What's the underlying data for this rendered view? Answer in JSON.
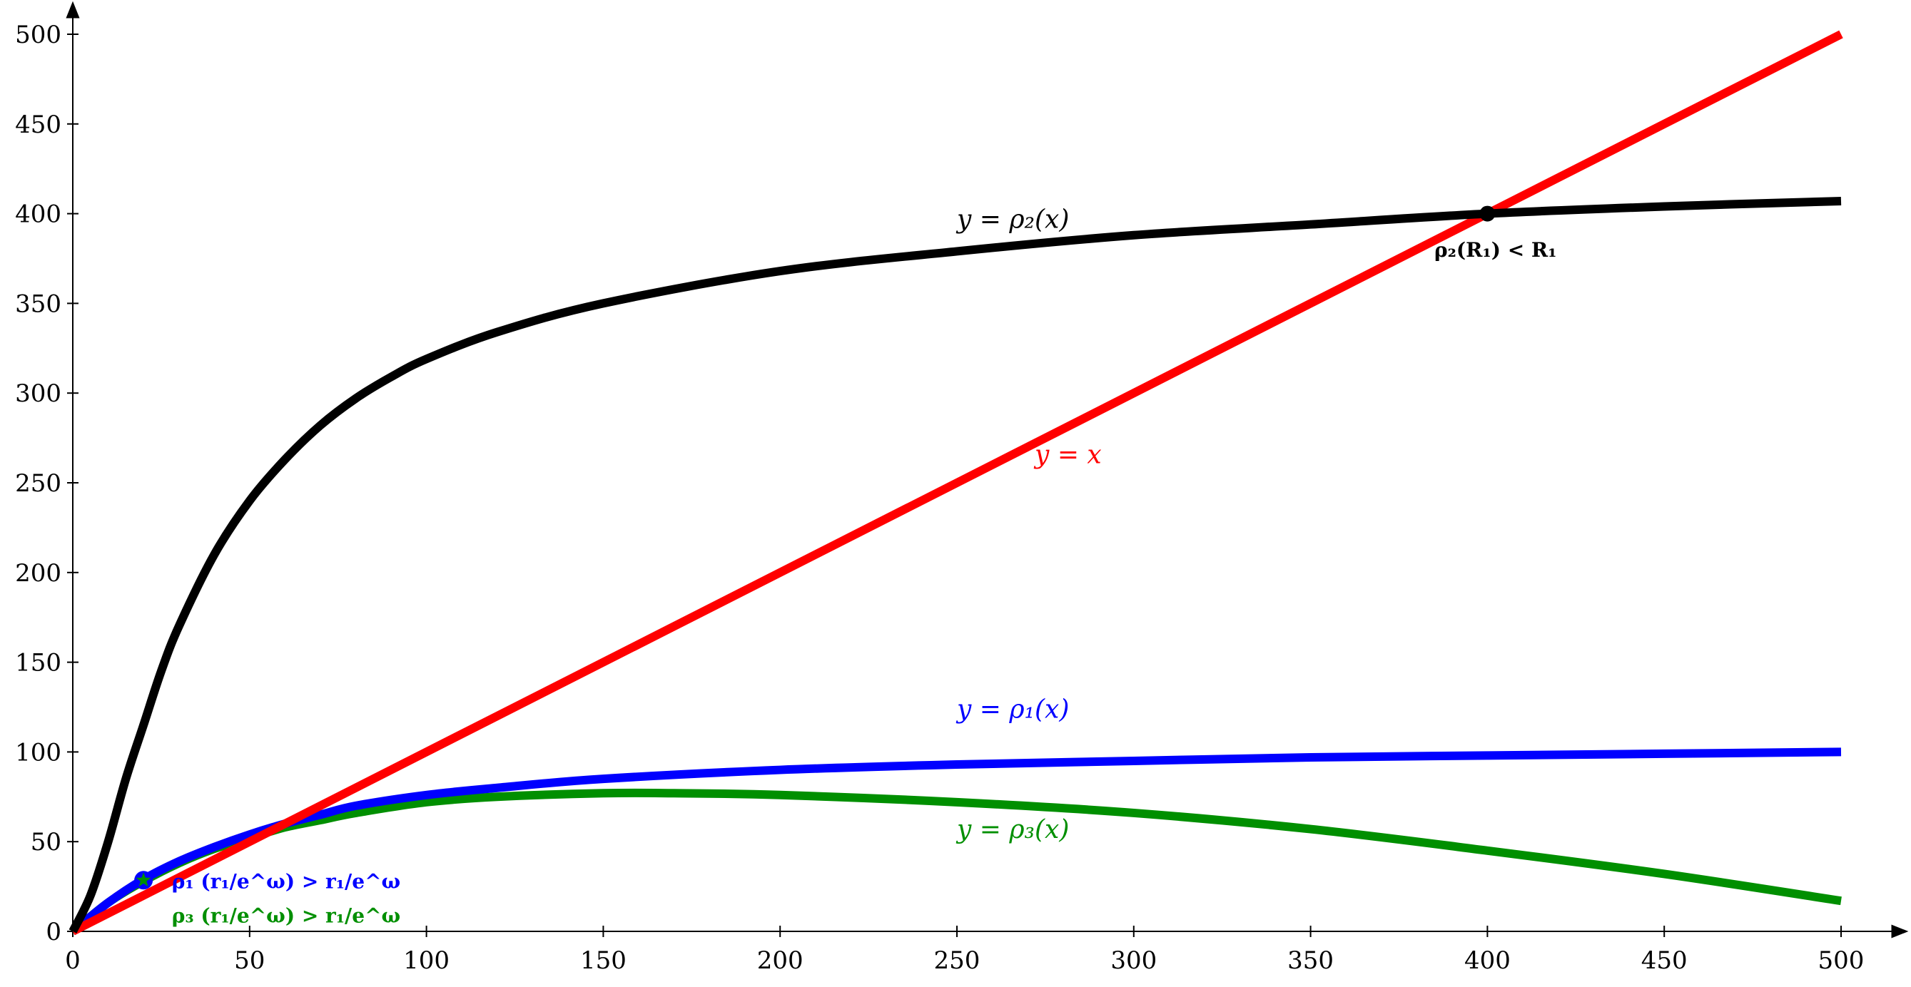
{
  "chart_data": {
    "type": "line",
    "title": "",
    "xlabel": "",
    "ylabel": "",
    "xlim": [
      0,
      500
    ],
    "ylim": [
      0,
      500
    ],
    "xticks": [
      0,
      50,
      100,
      150,
      200,
      250,
      300,
      350,
      400,
      450,
      500
    ],
    "yticks": [
      0,
      50,
      100,
      150,
      200,
      250,
      300,
      350,
      400,
      450,
      500
    ],
    "grid": false,
    "series": [
      {
        "name": "y = x",
        "color": "#ff0000",
        "x": [
          0,
          500
        ],
        "y": [
          0,
          500
        ]
      },
      {
        "name": "y = ρ₂(x)",
        "color": "#000000",
        "x": [
          0,
          5,
          10,
          15,
          20,
          25,
          30,
          40,
          50,
          60,
          70,
          80,
          90,
          100,
          120,
          150,
          200,
          250,
          300,
          350,
          400,
          450,
          500
        ],
        "y": [
          0,
          20,
          50,
          85,
          115,
          145,
          170,
          210,
          240,
          263,
          282,
          297,
          309,
          319,
          334,
          350,
          368,
          379,
          388,
          394,
          400,
          404,
          407
        ]
      },
      {
        "name": "y = ρ₁(x)",
        "color": "#0000ff",
        "x": [
          0,
          10,
          20,
          30,
          40,
          50,
          60,
          70,
          80,
          100,
          120,
          150,
          200,
          250,
          300,
          350,
          400,
          450,
          500
        ],
        "y": [
          0,
          16,
          29,
          39,
          47,
          54,
          60,
          65,
          70,
          76,
          80,
          85,
          90,
          93,
          95,
          97,
          98,
          99,
          100
        ]
      },
      {
        "name": "y = ρ₃(x)",
        "color": "#008f00",
        "x": [
          0,
          10,
          20,
          30,
          40,
          50,
          60,
          70,
          80,
          100,
          120,
          150,
          170,
          200,
          250,
          300,
          350,
          400,
          450,
          500
        ],
        "y": [
          0,
          16,
          28,
          38,
          46,
          52,
          58,
          62,
          66,
          72,
          75,
          77,
          77,
          76,
          72,
          66,
          57,
          45,
          32,
          17
        ]
      }
    ],
    "curve_labels": [
      {
        "text": "y = ρ₂(x)",
        "color": "#000000",
        "x": 250,
        "y": 392
      },
      {
        "text": "y = x",
        "color": "#ff0000",
        "x": 272,
        "y": 261
      },
      {
        "text": "y = ρ₁(x)",
        "color": "#0000ff",
        "x": 250,
        "y": 119
      },
      {
        "text": "y = ρ₃(x)",
        "color": "#008f00",
        "x": 250,
        "y": 52
      }
    ],
    "points": [
      {
        "label": "ρ₂(R₁) < R₁",
        "x": 400,
        "y": 400,
        "color": "#000000",
        "marker": "dot",
        "label_x": 385,
        "label_y": 376
      },
      {
        "label": "ρ₁ (r₁/e^ω) > r₁/e^ω",
        "x": 20,
        "y": 28.5,
        "color": "#0000ff",
        "marker": "circle",
        "label_x": 28,
        "label_y": 24
      },
      {
        "label": "ρ₃ (r₁/e^ω) > r₁/e^ω",
        "x": 20,
        "y": 28.5,
        "color": "#008f00",
        "marker": "star",
        "label_x": 28,
        "label_y": 5
      }
    ]
  }
}
